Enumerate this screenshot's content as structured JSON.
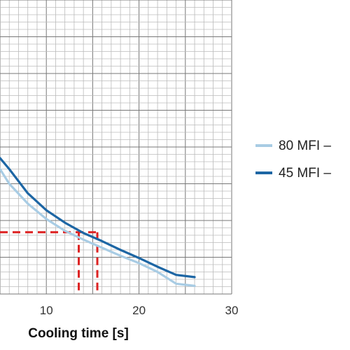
{
  "chart_data": {
    "type": "line",
    "xlabel": "Cooling time [s]",
    "xlim": [
      5,
      30
    ],
    "xticks": [
      10,
      20,
      30
    ],
    "ylim": [
      0,
      40
    ],
    "grid": true,
    "legend_position": "right",
    "series": [
      {
        "name": "80 MFI –",
        "color": "#a8cce4",
        "x": [
          5,
          6,
          8,
          10,
          12,
          14,
          16,
          18,
          20,
          22,
          24,
          26
        ],
        "y": [
          17,
          15,
          12.3,
          10.2,
          8.6,
          7.4,
          6.3,
          5.2,
          4.2,
          3.0,
          1.4,
          1.1
        ]
      },
      {
        "name": "45 MFI –",
        "color": "#1d66a4",
        "x": [
          5,
          6,
          8,
          10,
          12,
          14,
          16,
          18,
          20,
          22,
          24,
          26
        ],
        "y": [
          18.5,
          17,
          13.7,
          11.4,
          9.7,
          8.3,
          7.2,
          6.0,
          4.9,
          3.7,
          2.6,
          2.3
        ]
      }
    ],
    "annotations": [
      {
        "type": "dashed-horizontal",
        "color": "#dd2222",
        "y": 8.4,
        "x_from": 5,
        "x_to": 15.5
      },
      {
        "type": "dashed-vertical",
        "color": "#dd2222",
        "x": 13.5,
        "y_from": 0,
        "y_to": 8.4
      },
      {
        "type": "dashed-vertical",
        "color": "#dd2222",
        "x": 15.5,
        "y_from": 0,
        "y_to": 8.4
      }
    ]
  }
}
